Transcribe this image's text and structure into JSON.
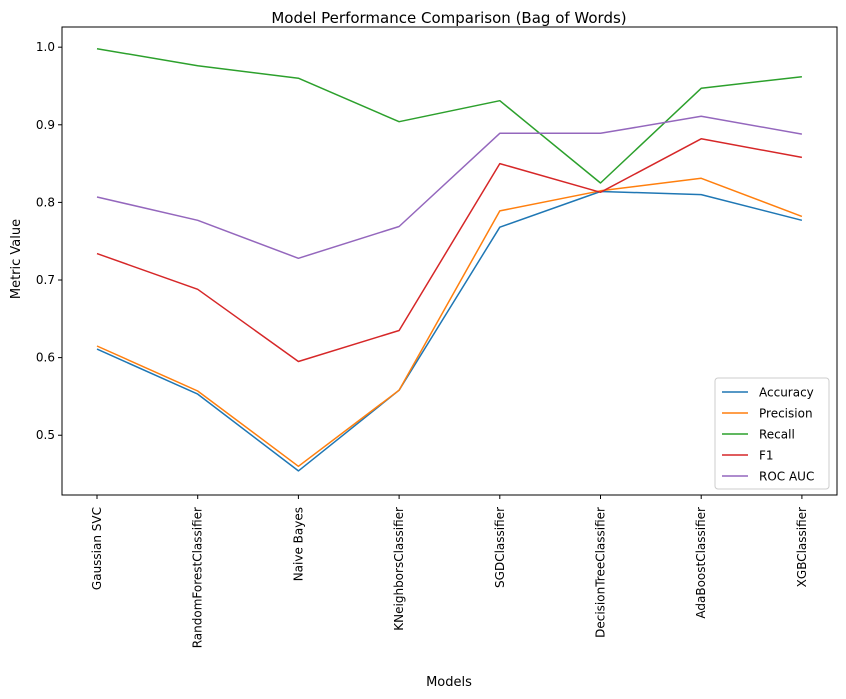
{
  "chart_data": {
    "type": "line",
    "title": "Model Performance Comparison (Bag of Words)",
    "xlabel": "Models",
    "ylabel": "Metric Value",
    "categories": [
      "Gaussian SVC",
      "RandomForestClassifier",
      "Naive Bayes",
      "KNeighborsClassifier",
      "SGDClassifier",
      "DecisionTreeClassifier",
      "AdaBoostClassifier",
      "XGBClassifier"
    ],
    "yticks": [
      "0.5",
      "0.6",
      "0.7",
      "0.8",
      "0.9",
      "1.0"
    ],
    "ylim": [
      0.423,
      1.026
    ],
    "grid": false,
    "legend_position": "lower-right",
    "series": [
      {
        "name": "Accuracy",
        "color": "#1f77b4",
        "values": [
          0.611,
          0.553,
          0.454,
          0.558,
          0.768,
          0.814,
          0.81,
          0.777
        ]
      },
      {
        "name": "Precision",
        "color": "#ff7f0e",
        "values": [
          0.615,
          0.557,
          0.46,
          0.558,
          0.789,
          0.815,
          0.831,
          0.782
        ]
      },
      {
        "name": "Recall",
        "color": "#2ca02c",
        "values": [
          0.998,
          0.976,
          0.96,
          0.904,
          0.931,
          0.825,
          0.947,
          0.962
        ]
      },
      {
        "name": "F1",
        "color": "#d62728",
        "values": [
          0.734,
          0.688,
          0.595,
          0.635,
          0.85,
          0.813,
          0.882,
          0.858
        ]
      },
      {
        "name": "ROC AUC",
        "color": "#9467bd",
        "values": [
          0.807,
          0.777,
          0.728,
          0.769,
          0.889,
          0.889,
          0.911,
          0.888
        ]
      }
    ]
  }
}
